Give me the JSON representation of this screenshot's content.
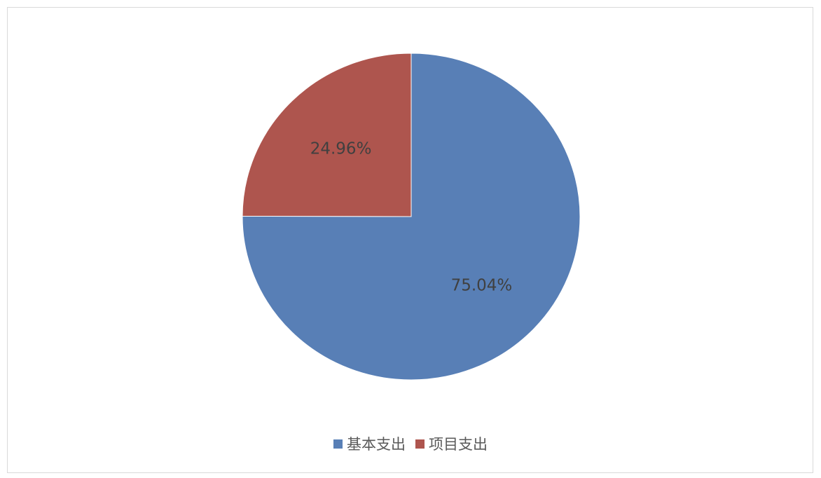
{
  "chart_data": {
    "type": "pie",
    "categories": [
      "基本支出",
      "项目支出"
    ],
    "values": [
      75.04,
      24.96
    ],
    "data_labels": [
      "75.04%",
      "24.96%"
    ],
    "colors": [
      "#587fb6",
      "#ae554e"
    ],
    "legend_position": "bottom",
    "start_angle": "top, clockwise"
  }
}
